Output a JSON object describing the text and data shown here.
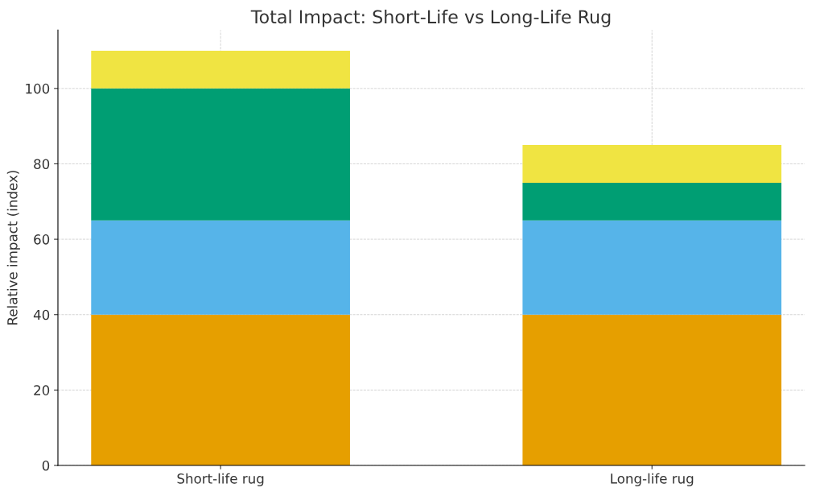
{
  "chart_data": {
    "type": "bar",
    "title": "Total Impact: Short-Life vs Long-Life Rug",
    "ylabel": "Relative impact (index)",
    "categories": [
      "Short-life rug",
      "Long-life rug"
    ],
    "stacked": true,
    "series": [
      {
        "color": "#e69f00",
        "values": [
          40,
          40
        ]
      },
      {
        "color": "#56b4e9",
        "values": [
          25,
          25
        ]
      },
      {
        "color": "#009e73",
        "values": [
          35,
          10
        ]
      },
      {
        "color": "#f0e442",
        "values": [
          10,
          10
        ]
      }
    ],
    "ylim": [
      0,
      115.5
    ],
    "yticks": [
      0,
      20,
      40,
      60,
      80,
      100
    ],
    "grid": true
  }
}
